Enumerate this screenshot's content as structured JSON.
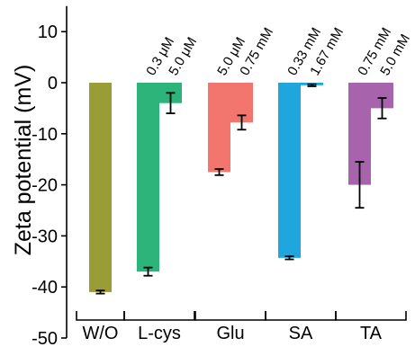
{
  "chart_data": {
    "type": "bar",
    "title": "",
    "ylabel": "Zeta potential (mV)",
    "xlabel": "",
    "ylim": [
      -50,
      15
    ],
    "yticks": [
      10,
      0,
      -10,
      -20,
      -30,
      -40,
      -50
    ],
    "yticklabels": [
      "10",
      "0",
      "-10",
      "-20",
      "-30",
      "-40",
      "-50"
    ],
    "grid": false,
    "legend": "none",
    "groups": [
      {
        "label": "W/O",
        "bars": [
          {
            "conc": "",
            "value": -41.0,
            "err": 0.3,
            "color": "#9a9c36"
          }
        ]
      },
      {
        "label": "L-cys",
        "bars": [
          {
            "conc": "0.3 μM",
            "value": -37.0,
            "err": 0.8,
            "color": "#2cb47b"
          },
          {
            "conc": "5.0 μM",
            "value": -4.0,
            "err": 2.0,
            "color": "#2cb47b"
          }
        ]
      },
      {
        "label": "Glu",
        "bars": [
          {
            "conc": "5.0 μM",
            "value": -17.5,
            "err": 0.6,
            "color": "#f3766e"
          },
          {
            "conc": "0.75 mM",
            "value": -7.8,
            "err": 1.4,
            "color": "#f3766e"
          }
        ]
      },
      {
        "label": "SA",
        "bars": [
          {
            "conc": "0.33 mM",
            "value": -34.3,
            "err": 0.3,
            "color": "#1ea6dd"
          },
          {
            "conc": "1.67 mM",
            "value": -0.5,
            "err": 0.2,
            "color": "#1ea6dd"
          }
        ]
      },
      {
        "label": "TA",
        "bars": [
          {
            "conc": "0.75 mM",
            "value": -20.0,
            "err": 4.5,
            "color": "#a764ad"
          },
          {
            "conc": "5.0 mM",
            "value": -5.0,
            "err": 2.0,
            "color": "#a764ad"
          }
        ]
      }
    ]
  }
}
